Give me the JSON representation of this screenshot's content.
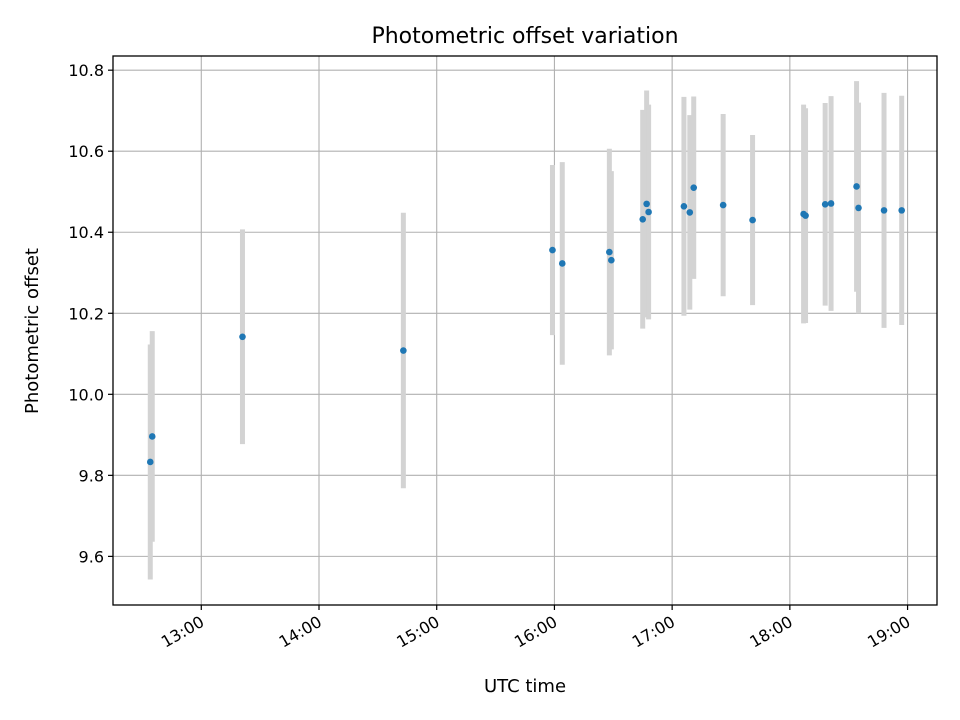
{
  "chart_data": {
    "type": "scatter",
    "title": "Photometric offset variation",
    "xlabel": "UTC time",
    "ylabel": "Photometric offset",
    "grid": true,
    "xlim": [
      "12:15",
      "19:15"
    ],
    "ylim": [
      9.48,
      10.835
    ],
    "x_ticks": [
      "13:00",
      "14:00",
      "15:00",
      "16:00",
      "17:00",
      "18:00",
      "19:00"
    ],
    "y_ticks": [
      "9.6",
      "9.8",
      "10.0",
      "10.2",
      "10.4",
      "10.6",
      "10.8"
    ],
    "colors": {
      "point": "#1f77b4",
      "errorbar": "#d3d3d3"
    },
    "points": [
      {
        "x": "12:34",
        "y": 9.833,
        "yerr": 0.29
      },
      {
        "x": "12:35",
        "y": 9.896,
        "yerr": 0.26
      },
      {
        "x": "13:21",
        "y": 10.142,
        "yerr": 0.265
      },
      {
        "x": "14:43",
        "y": 10.108,
        "yerr": 0.34
      },
      {
        "x": "15:59",
        "y": 10.356,
        "yerr": 0.21
      },
      {
        "x": "16:04",
        "y": 10.323,
        "yerr": 0.25
      },
      {
        "x": "16:28",
        "y": 10.351,
        "yerr": 0.255
      },
      {
        "x": "16:29",
        "y": 10.331,
        "yerr": 0.22
      },
      {
        "x": "16:45",
        "y": 10.432,
        "yerr": 0.27
      },
      {
        "x": "16:47",
        "y": 10.47,
        "yerr": 0.28
      },
      {
        "x": "16:48",
        "y": 10.45,
        "yerr": 0.265
      },
      {
        "x": "17:06",
        "y": 10.464,
        "yerr": 0.27
      },
      {
        "x": "17:09",
        "y": 10.449,
        "yerr": 0.24
      },
      {
        "x": "17:11",
        "y": 10.51,
        "yerr": 0.225
      },
      {
        "x": "17:26",
        "y": 10.467,
        "yerr": 0.225
      },
      {
        "x": "17:41",
        "y": 10.43,
        "yerr": 0.21
      },
      {
        "x": "18:07",
        "y": 10.445,
        "yerr": 0.27
      },
      {
        "x": "18:08",
        "y": 10.441,
        "yerr": 0.265
      },
      {
        "x": "18:18",
        "y": 10.469,
        "yerr": 0.25
      },
      {
        "x": "18:21",
        "y": 10.471,
        "yerr": 0.265
      },
      {
        "x": "18:34",
        "y": 10.513,
        "yerr": 0.26
      },
      {
        "x": "18:35",
        "y": 10.46,
        "yerr": 0.26
      },
      {
        "x": "18:48",
        "y": 10.454,
        "yerr": 0.29
      },
      {
        "x": "18:57",
        "y": 10.454,
        "yerr": 0.283
      }
    ]
  }
}
